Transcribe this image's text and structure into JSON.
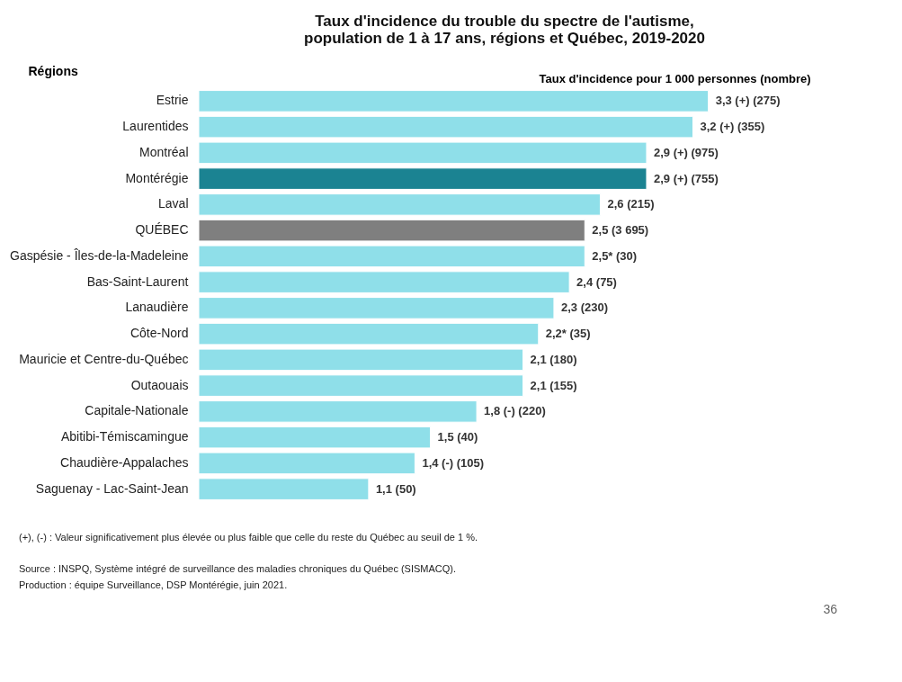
{
  "chart_data": {
    "type": "bar",
    "orientation": "horizontal",
    "title": [
      "Taux d'incidence du trouble du spectre de l'autisme,",
      "population de 1 à 17 ans, régions et Québec, 2019-2020"
    ],
    "ylabel": "Régions",
    "xlabel": "Taux d'incidence pour 1 000 personnes (nombre)",
    "categories": [
      "Estrie",
      "Laurentides",
      "Montréal",
      "Montérégie",
      "Laval",
      "QUÉBEC",
      "Gaspésie - Îles-de-la-Madeleine",
      "Bas-Saint-Laurent",
      "Lanaudière",
      "Côte-Nord",
      "Mauricie et Centre-du-Québec",
      "Outaouais",
      "Capitale-Nationale",
      "Abitibi-Témiscamingue",
      "Chaudière-Appalaches",
      "Saguenay - Lac-Saint-Jean"
    ],
    "values": [
      3.3,
      3.2,
      2.9,
      2.9,
      2.6,
      2.5,
      2.5,
      2.4,
      2.3,
      2.2,
      2.1,
      2.1,
      1.8,
      1.5,
      1.4,
      1.1
    ],
    "value_labels": [
      "3,3 (+) (275)",
      "3,2 (+) (355)",
      "2,9 (+) (975)",
      "2,9 (+) (755)",
      "2,6 (215)",
      "2,5 (3 695)",
      "2,5* (30)",
      "2,4 (75)",
      "2,3 (230)",
      "2,2* (35)",
      "2,1 (180)",
      "2,1 (155)",
      "1,8 (-) (220)",
      "1,5 (40)",
      "1,4 (-) (105)",
      "1,1 (50)"
    ],
    "colors": [
      "#8fdfe9",
      "#8fdfe9",
      "#8fdfe9",
      "#1b8392",
      "#8fdfe9",
      "#7f7f7f",
      "#8fdfe9",
      "#8fdfe9",
      "#8fdfe9",
      "#8fdfe9",
      "#8fdfe9",
      "#8fdfe9",
      "#8fdfe9",
      "#8fdfe9",
      "#8fdfe9",
      "#8fdfe9"
    ],
    "annotations": [
      "(+), (-) : Valeur significativement plus élevée ou plus faible que celle du reste du Québec au seuil de 1 %.",
      "Source : INSPQ, Système intégré de surveillance des maladies chroniques du Québec (SISMACQ).",
      "Production : équipe Surveillance, DSP Montérégie, juin 2021.",
      "36"
    ],
    "grid": false
  }
}
